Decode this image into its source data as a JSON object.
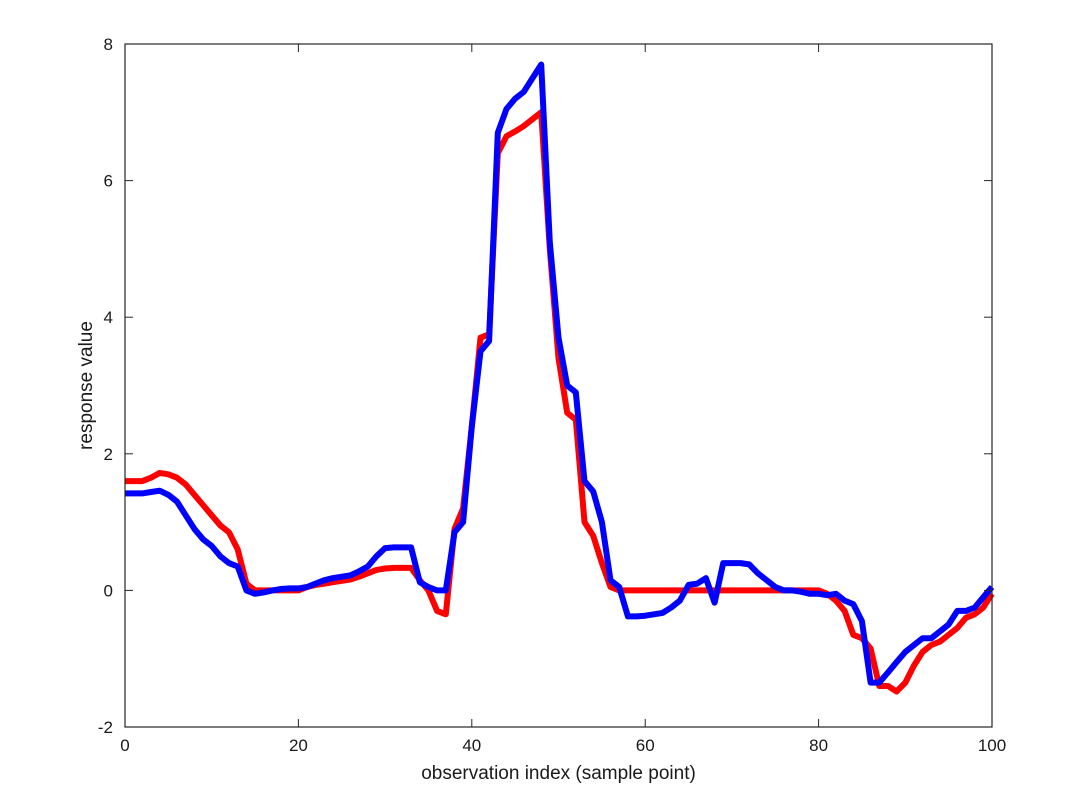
{
  "chart_data": {
    "type": "line",
    "title": "",
    "xlabel": "observation index (sample point)",
    "ylabel": "response value",
    "xlim": [
      0,
      100
    ],
    "ylim": [
      -2,
      8
    ],
    "xticks": [
      0,
      20,
      40,
      60,
      80,
      100
    ],
    "yticks": [
      -2,
      0,
      2,
      4,
      6,
      8
    ],
    "grid": false,
    "legend": "none",
    "series": [
      {
        "color": "#ff0000",
        "x": [
          0,
          1,
          2,
          3,
          4,
          5,
          6,
          7,
          8,
          9,
          10,
          11,
          12,
          13,
          14,
          15,
          16,
          17,
          18,
          19,
          20,
          21,
          22,
          23,
          24,
          25,
          26,
          27,
          28,
          29,
          30,
          31,
          32,
          33,
          34,
          35,
          36,
          37,
          38,
          39,
          40,
          41,
          42,
          43,
          44,
          45,
          46,
          47,
          48,
          49,
          50,
          51,
          52,
          53,
          54,
          55,
          56,
          57,
          58,
          59,
          60,
          61,
          62,
          63,
          64,
          65,
          66,
          67,
          68,
          69,
          70,
          71,
          72,
          73,
          74,
          75,
          76,
          77,
          78,
          79,
          80,
          81,
          82,
          83,
          84,
          85,
          86,
          87,
          88,
          89,
          90,
          91,
          92,
          93,
          94,
          95,
          96,
          97,
          98,
          99,
          100
        ],
        "values": [
          1.6,
          1.6,
          1.6,
          1.65,
          1.72,
          1.7,
          1.65,
          1.55,
          1.4,
          1.25,
          1.1,
          0.95,
          0.85,
          0.6,
          0.1,
          0.0,
          0.0,
          0.0,
          0.0,
          0.0,
          0.0,
          0.05,
          0.08,
          0.1,
          0.12,
          0.14,
          0.16,
          0.2,
          0.25,
          0.3,
          0.32,
          0.33,
          0.33,
          0.33,
          0.15,
          0.0,
          -0.3,
          -0.35,
          0.9,
          1.2,
          2.4,
          3.7,
          3.75,
          6.4,
          6.65,
          6.72,
          6.8,
          6.9,
          7.0,
          5.0,
          3.4,
          2.6,
          2.5,
          1.0,
          0.8,
          0.4,
          0.05,
          0.0,
          0.0,
          0.0,
          0.0,
          0.0,
          0.0,
          0.0,
          0.0,
          0.0,
          0.0,
          0.0,
          0.0,
          0.0,
          0.0,
          0.0,
          0.0,
          0.0,
          0.0,
          0.0,
          0.0,
          0.0,
          0.0,
          0.0,
          0.0,
          -0.05,
          -0.15,
          -0.3,
          -0.65,
          -0.7,
          -0.85,
          -1.4,
          -1.4,
          -1.48,
          -1.35,
          -1.1,
          -0.9,
          -0.8,
          -0.75,
          -0.65,
          -0.55,
          -0.4,
          -0.35,
          -0.25,
          -0.05
        ]
      },
      {
        "color": "#0000ff",
        "x": [
          0,
          1,
          2,
          3,
          4,
          5,
          6,
          7,
          8,
          9,
          10,
          11,
          12,
          13,
          14,
          15,
          16,
          17,
          18,
          19,
          20,
          21,
          22,
          23,
          24,
          25,
          26,
          27,
          28,
          29,
          30,
          31,
          32,
          33,
          34,
          35,
          36,
          37,
          38,
          39,
          40,
          41,
          42,
          43,
          44,
          45,
          46,
          47,
          48,
          49,
          50,
          51,
          52,
          53,
          54,
          55,
          56,
          57,
          58,
          59,
          60,
          61,
          62,
          63,
          64,
          65,
          66,
          67,
          68,
          69,
          70,
          71,
          72,
          73,
          74,
          75,
          76,
          77,
          78,
          79,
          80,
          81,
          82,
          83,
          84,
          85,
          86,
          87,
          88,
          89,
          90,
          91,
          92,
          93,
          94,
          95,
          96,
          97,
          98,
          99,
          100
        ],
        "values": [
          1.42,
          1.42,
          1.42,
          1.44,
          1.46,
          1.4,
          1.3,
          1.1,
          0.9,
          0.75,
          0.65,
          0.5,
          0.4,
          0.35,
          0.0,
          -0.05,
          -0.03,
          0.0,
          0.02,
          0.03,
          0.03,
          0.05,
          0.1,
          0.15,
          0.18,
          0.2,
          0.22,
          0.28,
          0.35,
          0.5,
          0.62,
          0.63,
          0.63,
          0.63,
          0.12,
          0.05,
          0.0,
          0.0,
          0.85,
          1.0,
          2.4,
          3.5,
          3.65,
          6.7,
          7.05,
          7.2,
          7.3,
          7.5,
          7.7,
          5.1,
          3.7,
          3.0,
          2.9,
          1.6,
          1.45,
          1.0,
          0.15,
          0.05,
          -0.38,
          -0.38,
          -0.37,
          -0.35,
          -0.33,
          -0.25,
          -0.15,
          0.08,
          0.1,
          0.18,
          -0.18,
          0.4,
          0.4,
          0.4,
          0.38,
          0.25,
          0.15,
          0.05,
          0.0,
          0.0,
          -0.02,
          -0.05,
          -0.05,
          -0.07,
          -0.05,
          -0.15,
          -0.2,
          -0.45,
          -1.35,
          -1.35,
          -1.2,
          -1.05,
          -0.9,
          -0.8,
          -0.7,
          -0.7,
          -0.6,
          -0.5,
          -0.3,
          -0.3,
          -0.25,
          -0.1,
          0.05
        ]
      }
    ]
  }
}
